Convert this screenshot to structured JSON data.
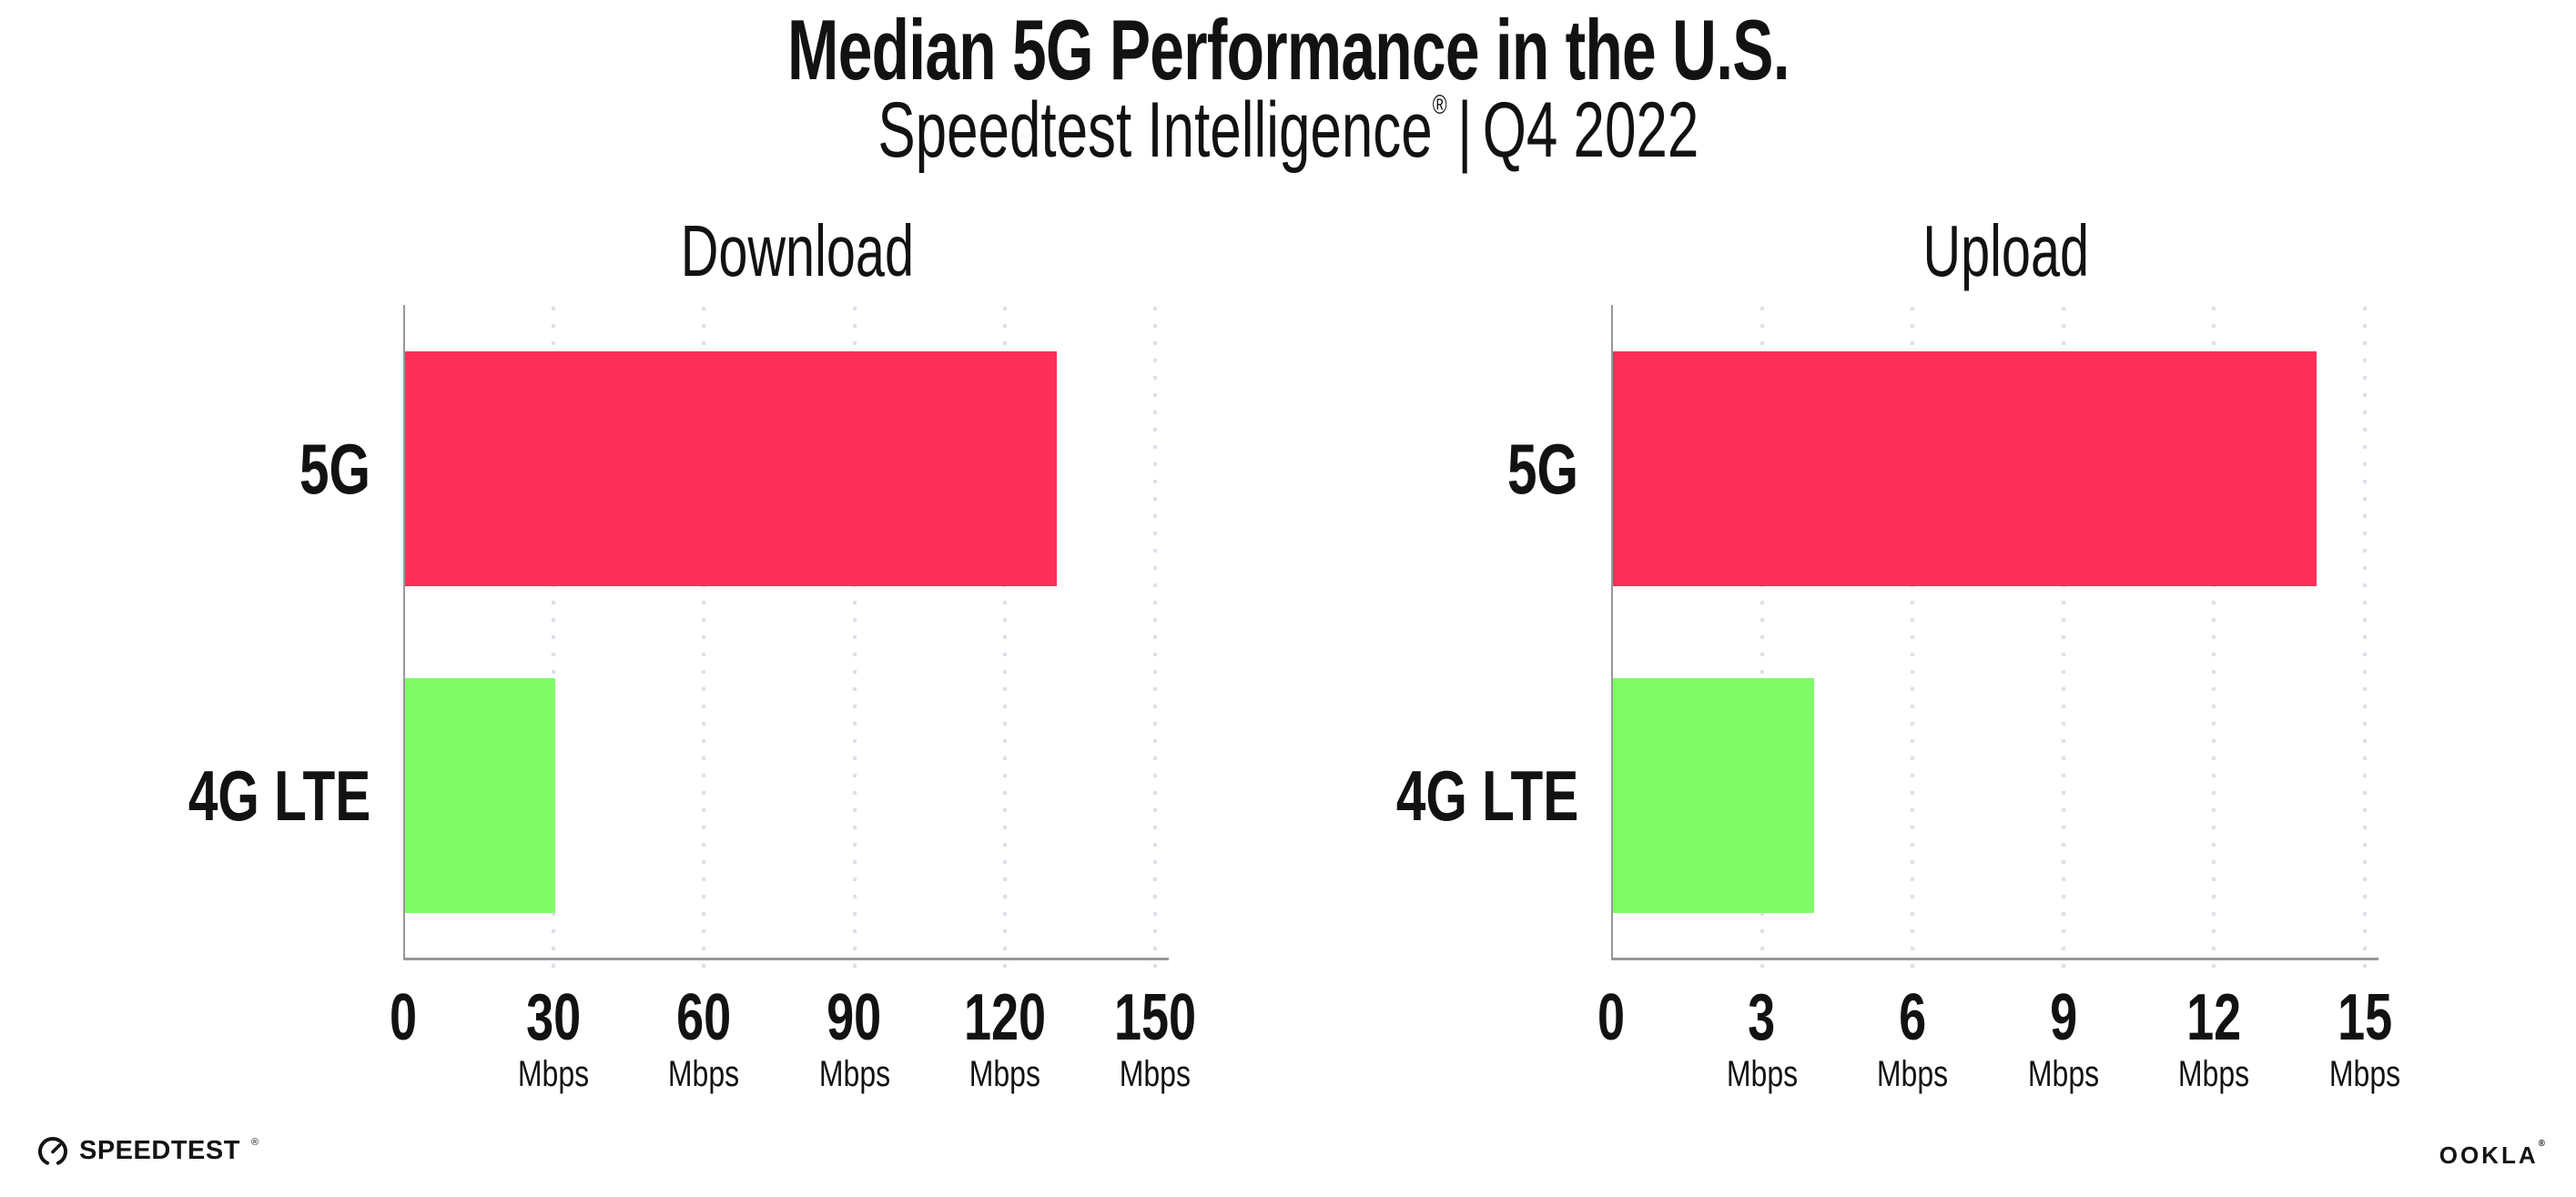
{
  "header": {
    "title": "Median 5G Performance in the U.S.",
    "subtitle": {
      "product": "Speedtest Intelligence",
      "reg": "®",
      "separator": "|",
      "period": "Q4 2022"
    }
  },
  "chart_data": [
    {
      "type": "bar",
      "orientation": "horizontal",
      "title": "Download",
      "categories": [
        "5G",
        "4G LTE"
      ],
      "values": [
        130,
        30
      ],
      "unit": "Mbps",
      "xlim": [
        0,
        150
      ],
      "xticks": [
        0,
        30,
        60,
        90,
        120,
        150
      ],
      "grid": "vertical-dotted",
      "legend": "none",
      "bar_colors": [
        "#FD2E59",
        "#80FC68"
      ]
    },
    {
      "type": "bar",
      "orientation": "horizontal",
      "title": "Upload",
      "categories": [
        "5G",
        "4G LTE"
      ],
      "values": [
        14,
        4
      ],
      "unit": "Mbps",
      "xlim": [
        0,
        15
      ],
      "xticks": [
        0,
        3,
        6,
        9,
        12,
        15
      ],
      "grid": "vertical-dotted",
      "legend": "none",
      "bar_colors": [
        "#FD2E59",
        "#80FC68"
      ]
    }
  ],
  "colors": {
    "bar_5g": "#FD2E59",
    "bar_4g_lte": "#80FC68",
    "gridline": "#DFDFEA",
    "axis": "#97979C",
    "text": "#121212"
  },
  "footer": {
    "speedtest": {
      "label": "SPEEDTEST",
      "mark": "®",
      "icon": "speedtest-gauge-icon"
    },
    "ookla": {
      "label": "OOKLA",
      "mark": "®"
    }
  }
}
